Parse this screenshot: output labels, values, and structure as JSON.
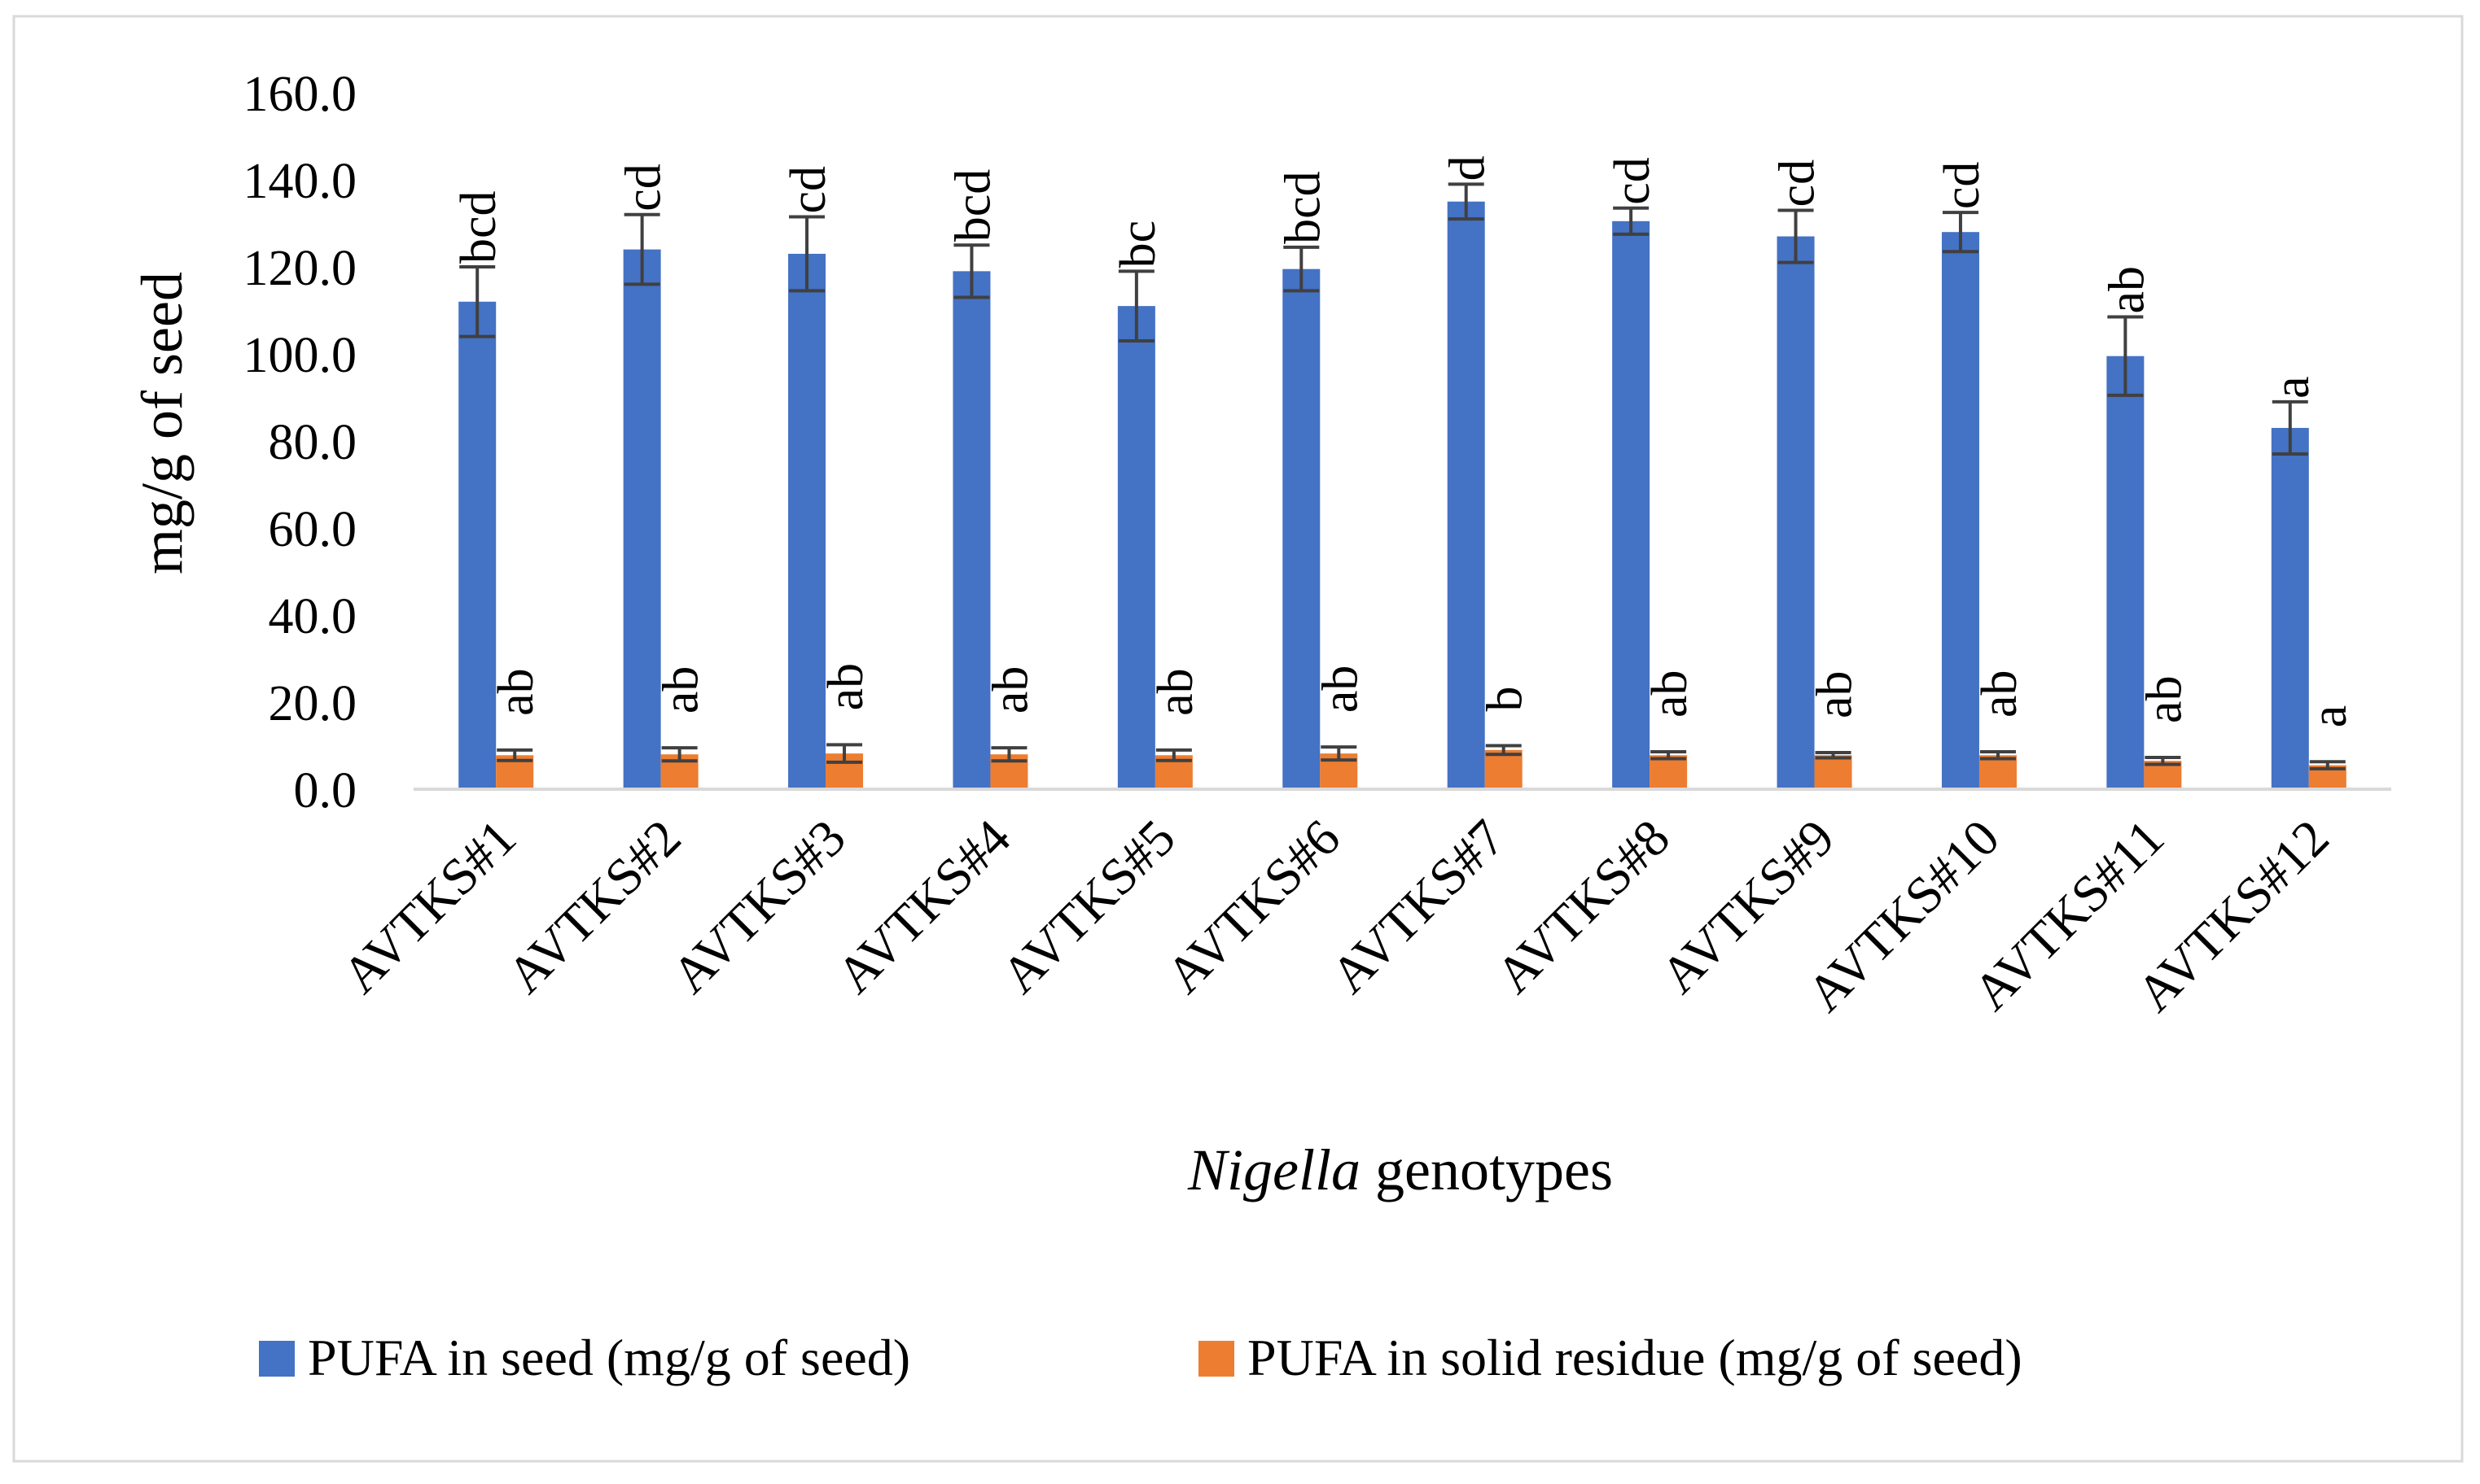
{
  "chart_data": {
    "type": "bar",
    "ylabel": "mg/g of seed",
    "xlabel_italic": "Nigella",
    "xlabel_rest": " genotypes",
    "ylim": [
      0,
      160
    ],
    "ytick_step": 20,
    "ytick_labels": [
      "0.0",
      "20.0",
      "40.0",
      "60.0",
      "80.0",
      "100.0",
      "120.0",
      "140.0",
      "160.0"
    ],
    "grid": false,
    "legend_position": "bottom",
    "categories": [
      "AVTKS#1",
      "AVTKS#2",
      "AVTKS#3",
      "AVTKS#4",
      "AVTKS#5",
      "AVTKS#6",
      "AVTKS#7",
      "AVTKS#8",
      "AVTKS#9",
      "AVTKS#10",
      "AVTKS#11",
      "AVTKS#12"
    ],
    "series": [
      {
        "name": "PUFA in seed (mg/g of seed)",
        "color": "#4472C4",
        "values": [
          112,
          124,
          123,
          119,
          111,
          119.5,
          135,
          130.5,
          127,
          128,
          99.5,
          83
        ],
        "errors": [
          8,
          8,
          8.5,
          6,
          8,
          5,
          4,
          3,
          6,
          4.5,
          9,
          6
        ],
        "letters": [
          "bcd",
          "cd",
          "cd",
          "bcd",
          "bc",
          "bcd",
          "d",
          "cd",
          "cd",
          "cd",
          "ab",
          "a"
        ]
      },
      {
        "name": "PUFA in solid residue (mg/g of seed)",
        "color": "#ED7D31",
        "values": [
          7.8,
          8,
          8.2,
          8,
          7.8,
          8.2,
          9,
          7.8,
          7.8,
          7.8,
          6.5,
          5.5
        ],
        "errors": [
          1.2,
          1.5,
          2,
          1.5,
          1.2,
          1.5,
          1,
          0.8,
          0.6,
          0.8,
          0.8,
          0.8
        ],
        "letters": [
          "ab",
          "ab",
          "ab",
          "ab",
          "ab",
          "ab",
          "b",
          "ab",
          "ab",
          "ab",
          "ab",
          "a"
        ]
      }
    ]
  }
}
